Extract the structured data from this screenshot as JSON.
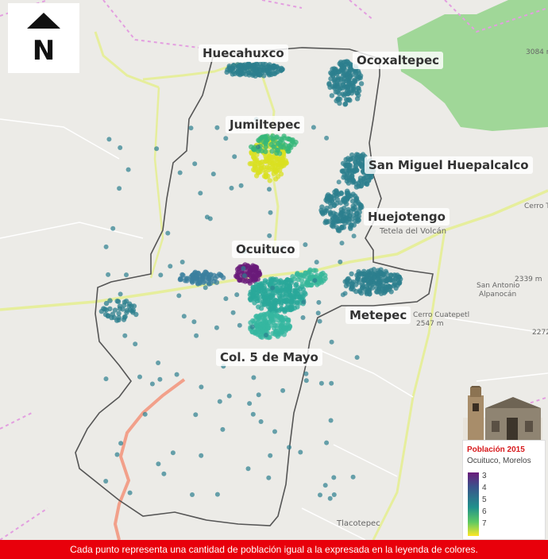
{
  "north_arrow": {
    "letter": "N"
  },
  "localities": [
    "Huecahuxco",
    "Ocoxaltepec",
    "Jumiltepec",
    "San Miguel Huepalcalco",
    "Huejotengo",
    "Ocuituco",
    "Metepec",
    "Col. 5 de Mayo"
  ],
  "basemap_labels": {
    "tetela": "Tetela del Volcán",
    "cerro_cuatepetl": "Cerro Cuatepetl",
    "elev_2547": "2547 m",
    "elev_3084": "3084 m",
    "cerro_te": "Cerro Te",
    "elev_2339": "2339 m",
    "san_antonio": "San Antonio",
    "alpanocan": "Alpanocán",
    "elev_2272": "2272",
    "tlacotepec": "Tlacotepec"
  },
  "legend": {
    "title": "Población 2015",
    "subtitle": "Ocuituco, Morelos",
    "ticks": [
      "3",
      "4",
      "5",
      "6",
      "7"
    ],
    "colors": {
      "low": "#6a1b7a",
      "mid": "#21918c",
      "high": "#fde725"
    }
  },
  "footer": {
    "text": "Cada punto representa una cantidad de población igual a la expresada en la leyenda de colores."
  }
}
